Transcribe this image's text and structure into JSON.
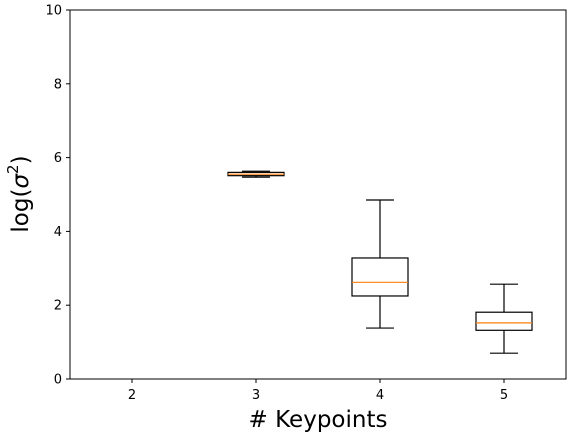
{
  "chart_data": {
    "type": "box",
    "title": "",
    "xlabel": "# Keypoints",
    "ylabel_parts": {
      "base": "log(",
      "symbol": "σ",
      "sup": "2",
      "close": ")"
    },
    "categories": [
      "2",
      "3",
      "4",
      "5"
    ],
    "ylim": [
      0,
      10
    ],
    "yticks": [
      0,
      2,
      4,
      6,
      8,
      10
    ],
    "grid": false,
    "colors": {
      "box": "#000000",
      "median": "#ff7f0e"
    },
    "boxes": [
      {
        "category": "3",
        "whisker_low": 5.47,
        "q1": 5.51,
        "median": 5.55,
        "q3": 5.6,
        "whisker_high": 5.63
      },
      {
        "category": "4",
        "whisker_low": 1.38,
        "q1": 2.25,
        "median": 2.62,
        "q3": 3.28,
        "whisker_high": 4.85
      },
      {
        "category": "5",
        "whisker_low": 0.7,
        "q1": 1.32,
        "median": 1.52,
        "q3": 1.81,
        "whisker_high": 2.57
      }
    ]
  }
}
